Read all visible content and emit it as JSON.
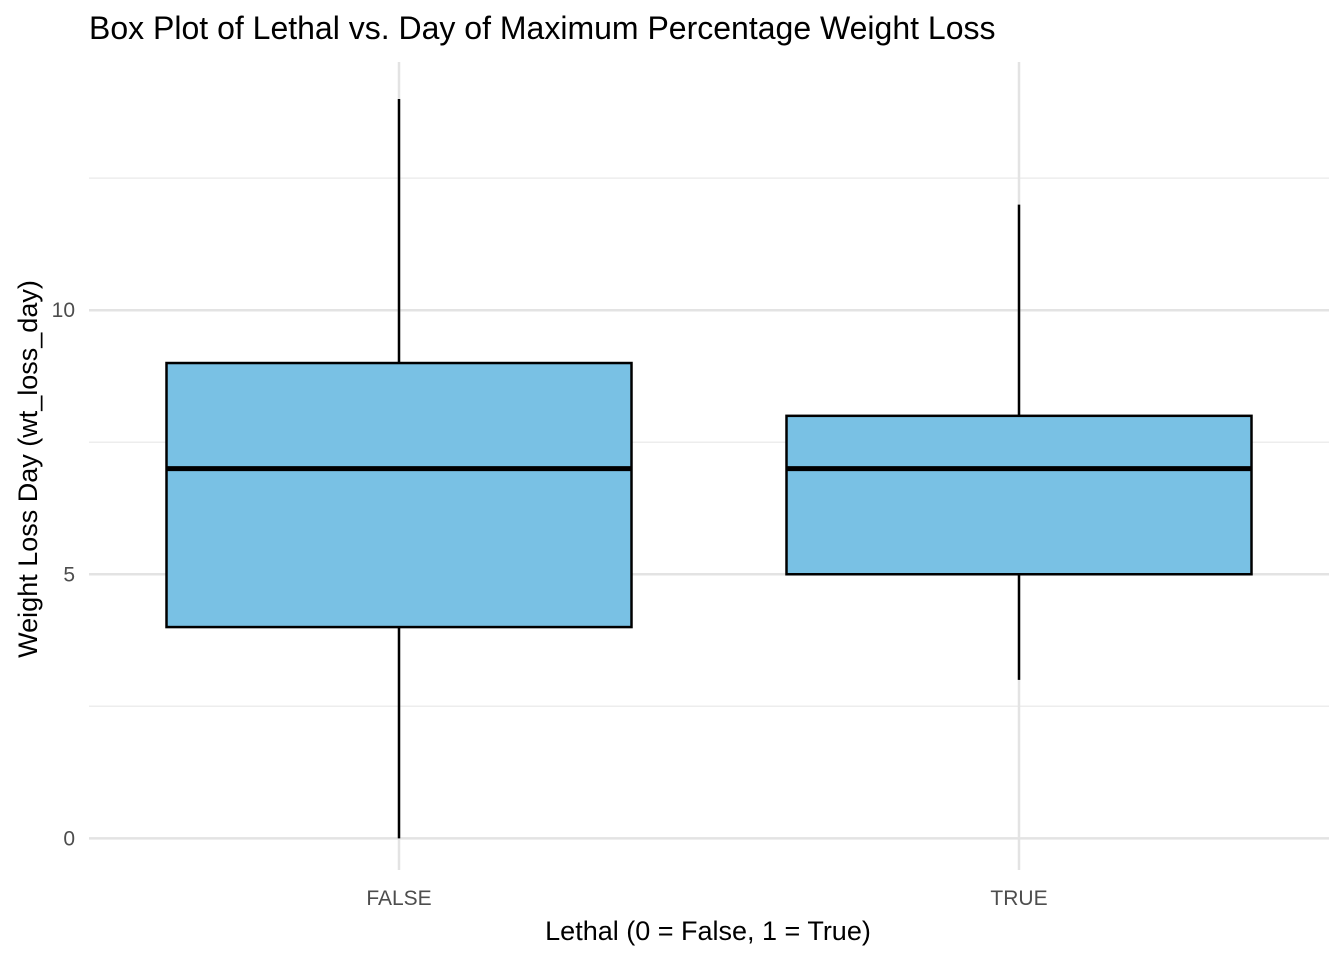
{
  "chart_data": {
    "type": "box",
    "title": "Box Plot of Lethal vs. Day of Maximum Percentage Weight Loss",
    "xlabel": "Lethal (0 = False, 1 = True)",
    "ylabel": "Weight Loss Day (wt_loss_day)",
    "categories": [
      "FALSE",
      "TRUE"
    ],
    "boxes": [
      {
        "category": "FALSE",
        "whisker_low": 0,
        "q1": 4,
        "median": 7,
        "q3": 9,
        "whisker_high": 14
      },
      {
        "category": "TRUE",
        "whisker_low": 3,
        "q1": 5,
        "median": 7,
        "q3": 8,
        "whisker_high": 12
      }
    ],
    "ylim": [
      -0.6,
      14.7
    ],
    "yticks": [
      0,
      5,
      10
    ],
    "yticks_minor": [
      2.5,
      7.5,
      12.5
    ],
    "yticks_labels": [
      "0",
      "5",
      "10"
    ],
    "grid": true,
    "box_fill": "#79c1e4",
    "box_stroke": "#000000",
    "grid_major_color": "#e3e3e3",
    "grid_minor_color": "#ededed"
  }
}
